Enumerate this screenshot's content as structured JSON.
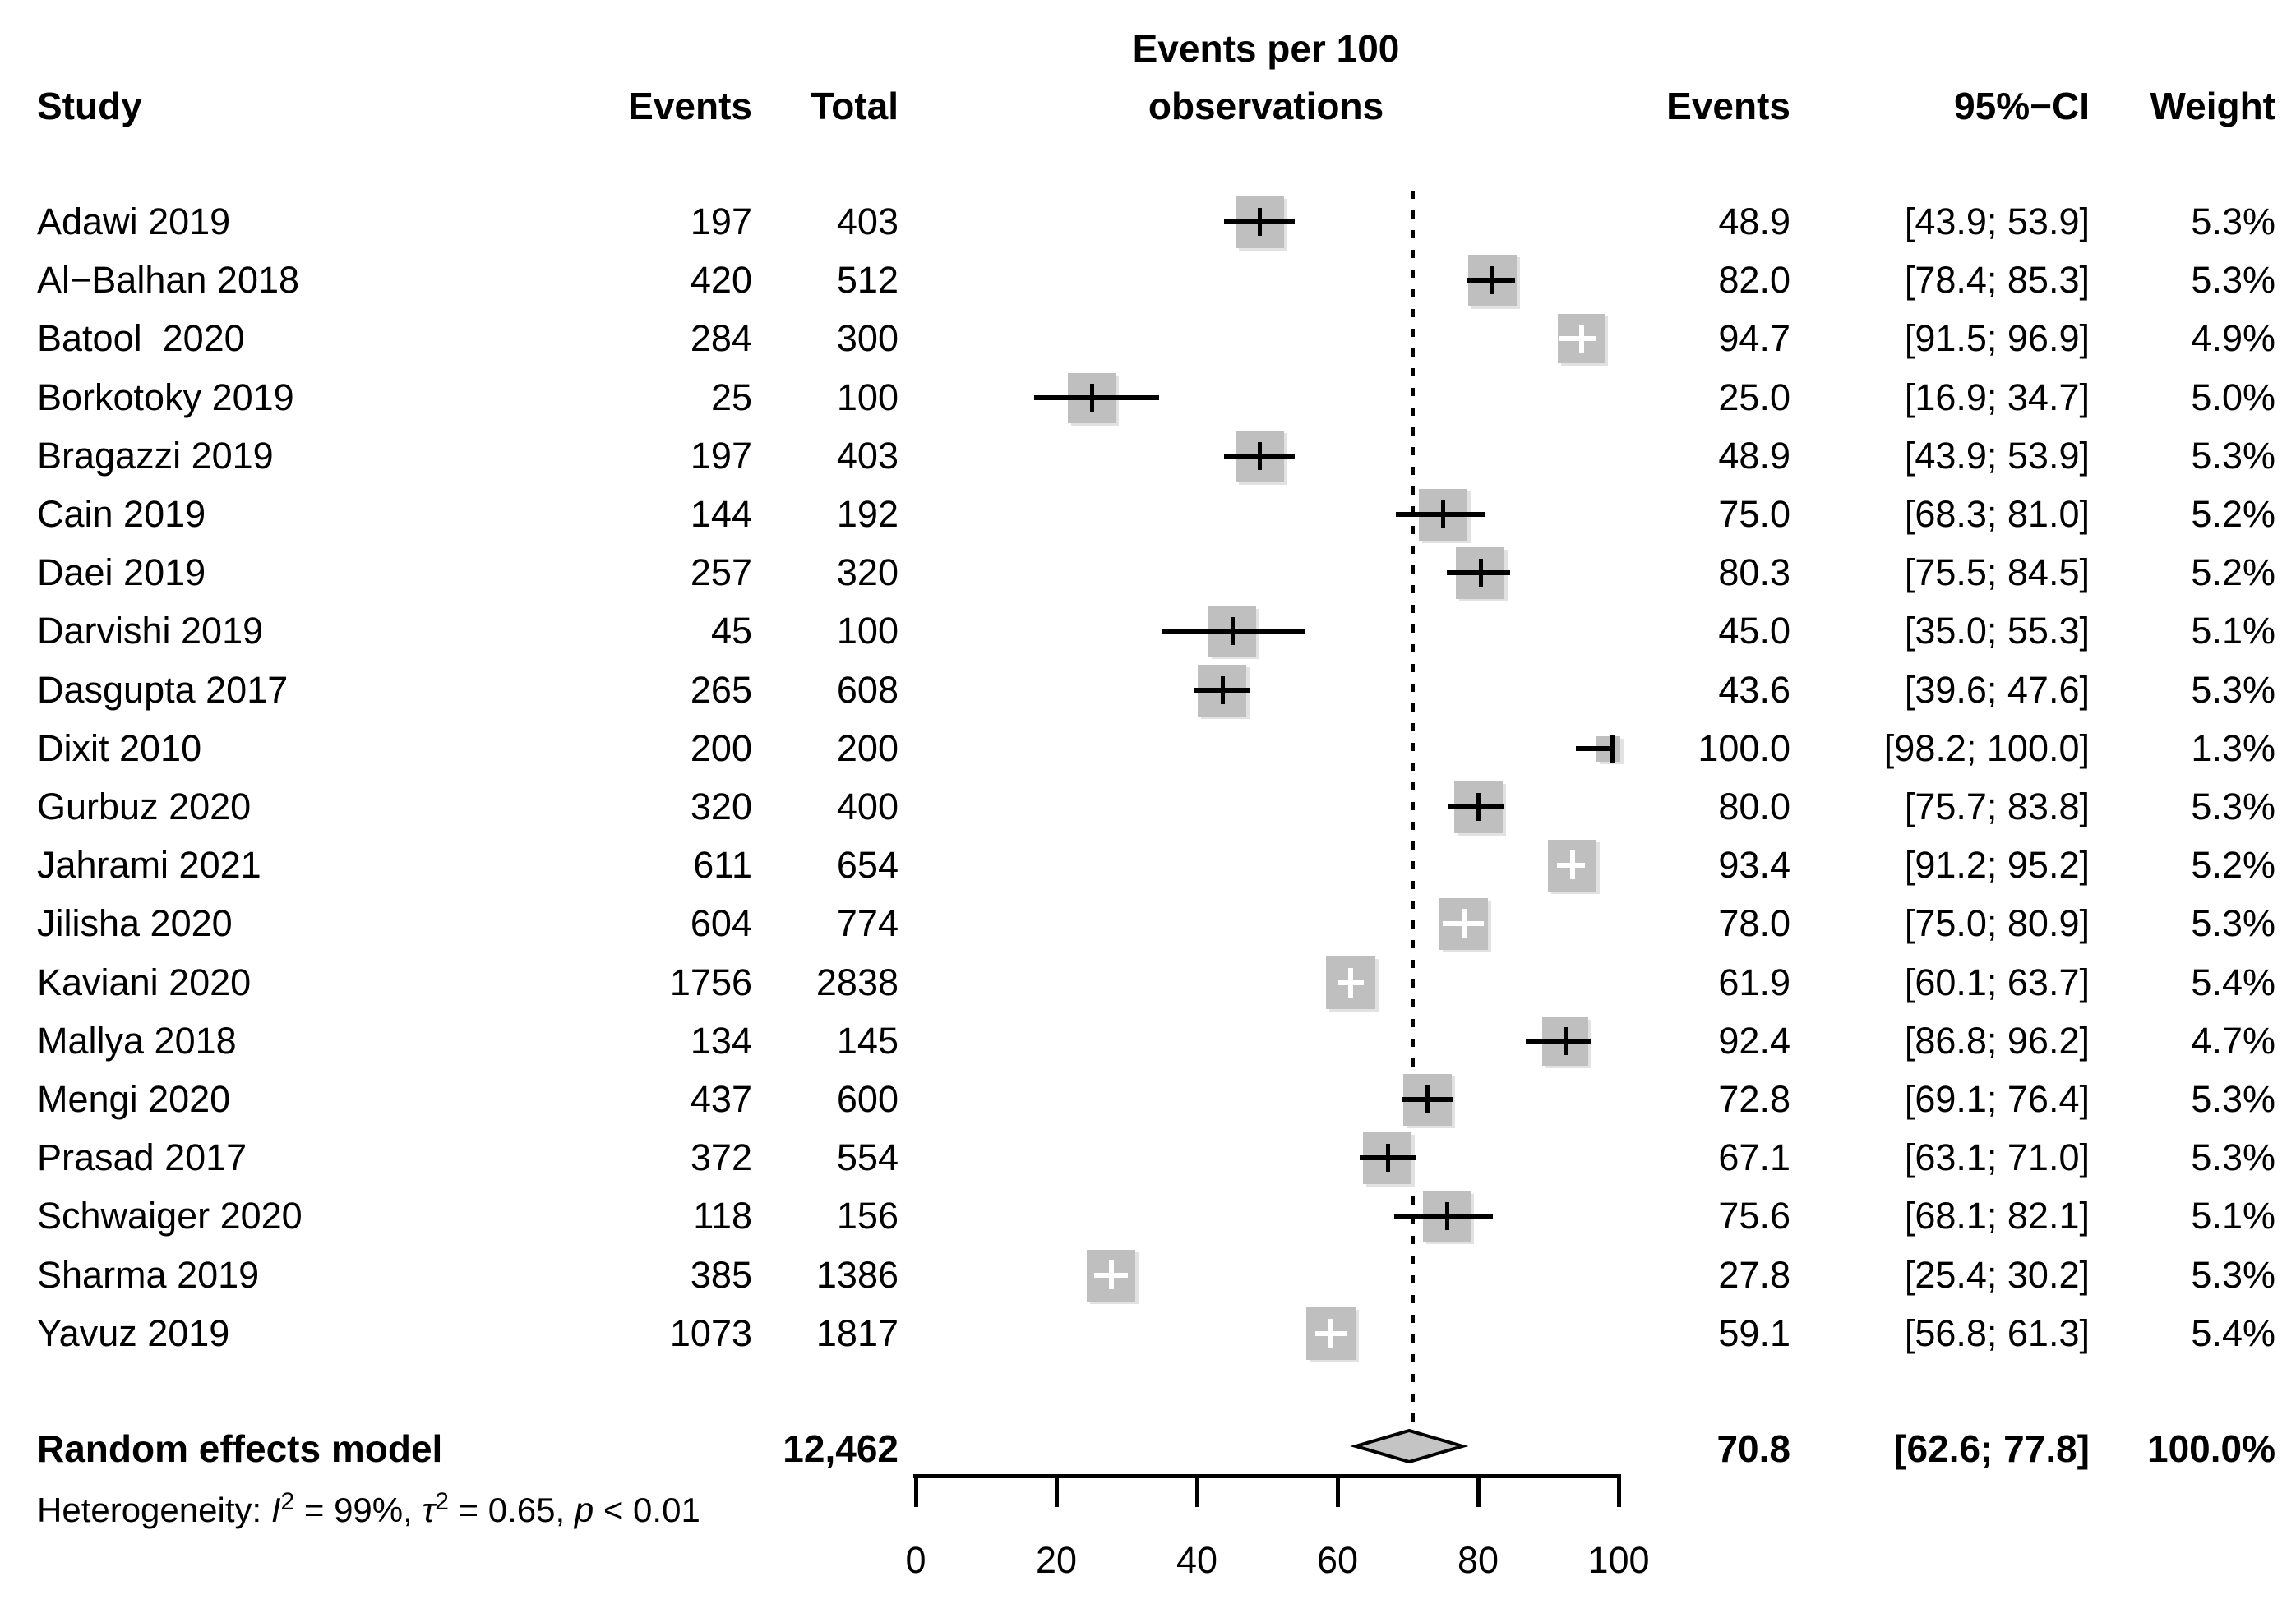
{
  "chart_data": {
    "type": "forest",
    "title_line1": "Events per 100",
    "title_line2": "observations",
    "columns": {
      "study": "Study",
      "events": "Events",
      "total": "Total",
      "events_pct": "Events",
      "ci": "95%−CI",
      "weight": "Weight"
    },
    "x_axis": {
      "min": 0,
      "max": 100,
      "ticks": [
        0,
        20,
        40,
        60,
        80,
        100
      ]
    },
    "reference_line_value": 70.8,
    "studies": [
      {
        "name": "Adawi 2019",
        "events": "197",
        "total": "403",
        "est": 48.9,
        "lo": 43.9,
        "hi": 53.9,
        "est_label": "48.9",
        "ci_label": "[43.9; 53.9]",
        "weight": 5.3,
        "weight_label": "5.3%",
        "marker": "black"
      },
      {
        "name": "Al−Balhan 2018",
        "events": "420",
        "total": "512",
        "est": 82.0,
        "lo": 78.4,
        "hi": 85.3,
        "est_label": "82.0",
        "ci_label": "[78.4; 85.3]",
        "weight": 5.3,
        "weight_label": "5.3%",
        "marker": "black"
      },
      {
        "name": "Batool  2020",
        "events": "284",
        "total": "300",
        "est": 94.7,
        "lo": 91.5,
        "hi": 96.9,
        "est_label": "94.7",
        "ci_label": "[91.5; 96.9]",
        "weight": 4.9,
        "weight_label": "4.9%",
        "marker": "white"
      },
      {
        "name": "Borkotoky 2019",
        "events": "25",
        "total": "100",
        "est": 25.0,
        "lo": 16.9,
        "hi": 34.7,
        "est_label": "25.0",
        "ci_label": "[16.9; 34.7]",
        "weight": 5.0,
        "weight_label": "5.0%",
        "marker": "black"
      },
      {
        "name": "Bragazzi 2019",
        "events": "197",
        "total": "403",
        "est": 48.9,
        "lo": 43.9,
        "hi": 53.9,
        "est_label": "48.9",
        "ci_label": "[43.9; 53.9]",
        "weight": 5.3,
        "weight_label": "5.3%",
        "marker": "black"
      },
      {
        "name": "Cain 2019",
        "events": "144",
        "total": "192",
        "est": 75.0,
        "lo": 68.3,
        "hi": 81.0,
        "est_label": "75.0",
        "ci_label": "[68.3; 81.0]",
        "weight": 5.2,
        "weight_label": "5.2%",
        "marker": "black"
      },
      {
        "name": "Daei 2019",
        "events": "257",
        "total": "320",
        "est": 80.3,
        "lo": 75.5,
        "hi": 84.5,
        "est_label": "80.3",
        "ci_label": "[75.5; 84.5]",
        "weight": 5.2,
        "weight_label": "5.2%",
        "marker": "black"
      },
      {
        "name": "Darvishi 2019",
        "events": "45",
        "total": "100",
        "est": 45.0,
        "lo": 35.0,
        "hi": 55.3,
        "est_label": "45.0",
        "ci_label": "[35.0; 55.3]",
        "weight": 5.1,
        "weight_label": "5.1%",
        "marker": "black"
      },
      {
        "name": "Dasgupta 2017",
        "events": "265",
        "total": "608",
        "est": 43.6,
        "lo": 39.6,
        "hi": 47.6,
        "est_label": "43.6",
        "ci_label": "[39.6; 47.6]",
        "weight": 5.3,
        "weight_label": "5.3%",
        "marker": "black"
      },
      {
        "name": "Dixit 2010",
        "events": "200",
        "total": "200",
        "est": 100.0,
        "lo": 98.2,
        "hi": 100.0,
        "est_label": "100.0",
        "ci_label": "[98.2; 100.0]",
        "weight": 1.3,
        "weight_label": "1.3%",
        "marker": "black"
      },
      {
        "name": "Gurbuz 2020",
        "events": "320",
        "total": "400",
        "est": 80.0,
        "lo": 75.7,
        "hi": 83.8,
        "est_label": "80.0",
        "ci_label": "[75.7; 83.8]",
        "weight": 5.3,
        "weight_label": "5.3%",
        "marker": "black"
      },
      {
        "name": "Jahrami 2021",
        "events": "611",
        "total": "654",
        "est": 93.4,
        "lo": 91.2,
        "hi": 95.2,
        "est_label": "93.4",
        "ci_label": "[91.2; 95.2]",
        "weight": 5.2,
        "weight_label": "5.2%",
        "marker": "white"
      },
      {
        "name": "Jilisha 2020",
        "events": "604",
        "total": "774",
        "est": 78.0,
        "lo": 75.0,
        "hi": 80.9,
        "est_label": "78.0",
        "ci_label": "[75.0; 80.9]",
        "weight": 5.3,
        "weight_label": "5.3%",
        "marker": "white"
      },
      {
        "name": "Kaviani 2020",
        "events": "1756",
        "total": "2838",
        "est": 61.9,
        "lo": 60.1,
        "hi": 63.7,
        "est_label": "61.9",
        "ci_label": "[60.1; 63.7]",
        "weight": 5.4,
        "weight_label": "5.4%",
        "marker": "white"
      },
      {
        "name": "Mallya 2018",
        "events": "134",
        "total": "145",
        "est": 92.4,
        "lo": 86.8,
        "hi": 96.2,
        "est_label": "92.4",
        "ci_label": "[86.8; 96.2]",
        "weight": 4.7,
        "weight_label": "4.7%",
        "marker": "black"
      },
      {
        "name": "Mengi 2020",
        "events": "437",
        "total": "600",
        "est": 72.8,
        "lo": 69.1,
        "hi": 76.4,
        "est_label": "72.8",
        "ci_label": "[69.1; 76.4]",
        "weight": 5.3,
        "weight_label": "5.3%",
        "marker": "black"
      },
      {
        "name": "Prasad 2017",
        "events": "372",
        "total": "554",
        "est": 67.1,
        "lo": 63.1,
        "hi": 71.0,
        "est_label": "67.1",
        "ci_label": "[63.1; 71.0]",
        "weight": 5.3,
        "weight_label": "5.3%",
        "marker": "black"
      },
      {
        "name": "Schwaiger 2020",
        "events": "118",
        "total": "156",
        "est": 75.6,
        "lo": 68.1,
        "hi": 82.1,
        "est_label": "75.6",
        "ci_label": "[68.1; 82.1]",
        "weight": 5.1,
        "weight_label": "5.1%",
        "marker": "black"
      },
      {
        "name": "Sharma 2019",
        "events": "385",
        "total": "1386",
        "est": 27.8,
        "lo": 25.4,
        "hi": 30.2,
        "est_label": "27.8",
        "ci_label": "[25.4; 30.2]",
        "weight": 5.3,
        "weight_label": "5.3%",
        "marker": "white"
      },
      {
        "name": "Yavuz 2019",
        "events": "1073",
        "total": "1817",
        "est": 59.1,
        "lo": 56.8,
        "hi": 61.3,
        "est_label": "59.1",
        "ci_label": "[56.8; 61.3]",
        "weight": 5.4,
        "weight_label": "5.4%",
        "marker": "white"
      }
    ],
    "summary": {
      "label": "Random effects model",
      "total": "12,462",
      "est": 70.8,
      "lo": 62.6,
      "hi": 77.8,
      "est_label": "70.8",
      "ci_label": "[62.6; 77.8]",
      "weight_label": "100.0%"
    },
    "heterogeneity": {
      "prefix": "Heterogeneity: ",
      "i_stat": "I",
      "i_sup": "2",
      "seg1": " = 99%, ",
      "tau": "τ",
      "tau_sup": "2",
      "seg2": " = 0.65, ",
      "p_stat": "p",
      "seg3": " < 0.01"
    }
  },
  "colors": {
    "square": "#bfbfbf",
    "diamond_fill": "#c4c4c4",
    "line": "#000000",
    "background": "#ffffff"
  }
}
